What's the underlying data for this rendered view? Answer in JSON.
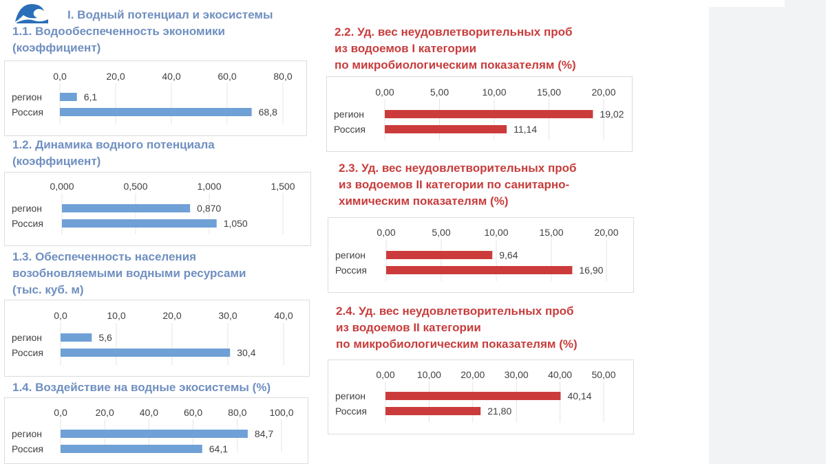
{
  "section_title": "I. Водный потенциал и экосистемы",
  "colors": {
    "blue_bar": "#6fa0d6",
    "red_bar": "#cc3b3b",
    "blue_title": "#6f8fc0",
    "red_title": "#c83c3c"
  },
  "charts": {
    "c11": {
      "title": "1.1. Водообеспеченность экономики\n(коэффициент)",
      "color": "blue"
    },
    "c12": {
      "title": "1.2. Динамика водного потенциала\n(коэффициент)",
      "color": "blue"
    },
    "c13": {
      "title": "1.3. Обеспеченность населения\nвозобновляемыми водными ресурсами\n(тыс. куб. м)",
      "color": "blue"
    },
    "c14": {
      "title": "1.4. Воздействие на водные экосистемы (%)",
      "color": "blue"
    },
    "c22": {
      "title": "2.2. Уд. вес неудовлетворительных проб\nиз водоемов I категории\nпо микробиологическим показателям (%)",
      "color": "red"
    },
    "c23": {
      "title": "2.3. Уд. вес неудовлетворительных проб\nиз водоемов II категории по санитарно-\nхимическим показателям (%)",
      "color": "red"
    },
    "c24": {
      "title": "2.4. Уд. вес неудовлетворительных проб\nиз водоемов II категории\nпо микробиологическим показателям (%)",
      "color": "red"
    }
  },
  "chart_data": [
    {
      "id": "c11",
      "type": "bar",
      "orientation": "horizontal",
      "categories": [
        "регион",
        "Россия"
      ],
      "values": [
        6.1,
        68.8
      ],
      "value_labels": [
        "6,1",
        "68,8"
      ],
      "xlim": [
        0,
        80
      ],
      "ticks": [
        "0,0",
        "20,0",
        "40,0",
        "60,0",
        "80,0"
      ]
    },
    {
      "id": "c12",
      "type": "bar",
      "orientation": "horizontal",
      "categories": [
        "регион",
        "Россия"
      ],
      "values": [
        0.87,
        1.05
      ],
      "value_labels": [
        "0,870",
        "1,050"
      ],
      "xlim": [
        0,
        1.5
      ],
      "ticks": [
        "0,000",
        "0,500",
        "1,000",
        "1,500"
      ]
    },
    {
      "id": "c13",
      "type": "bar",
      "orientation": "horizontal",
      "categories": [
        "регион",
        "Россия"
      ],
      "values": [
        5.6,
        30.4
      ],
      "value_labels": [
        "5,6",
        "30,4"
      ],
      "xlim": [
        0,
        40
      ],
      "ticks": [
        "0,0",
        "10,0",
        "20,0",
        "30,0",
        "40,0"
      ]
    },
    {
      "id": "c14",
      "type": "bar",
      "orientation": "horizontal",
      "categories": [
        "регион",
        "Россия"
      ],
      "values": [
        84.7,
        64.1
      ],
      "value_labels": [
        "84,7",
        "64,1"
      ],
      "xlim": [
        0,
        100
      ],
      "ticks": [
        "0,0",
        "20,0",
        "40,0",
        "60,0",
        "80,0",
        "100,0"
      ]
    },
    {
      "id": "c22",
      "type": "bar",
      "orientation": "horizontal",
      "categories": [
        "регион",
        "Россия"
      ],
      "values": [
        19.02,
        11.14
      ],
      "value_labels": [
        "19,02",
        "11,14"
      ],
      "xlim": [
        0,
        20
      ],
      "ticks": [
        "0,00",
        "5,00",
        "10,00",
        "15,00",
        "20,00"
      ]
    },
    {
      "id": "c23",
      "type": "bar",
      "orientation": "horizontal",
      "categories": [
        "регион",
        "Россия"
      ],
      "values": [
        9.64,
        16.9
      ],
      "value_labels": [
        "9,64",
        "16,90"
      ],
      "xlim": [
        0,
        20
      ],
      "ticks": [
        "0,00",
        "5,00",
        "10,00",
        "15,00",
        "20,00"
      ]
    },
    {
      "id": "c24",
      "type": "bar",
      "orientation": "horizontal",
      "categories": [
        "регион",
        "Россия"
      ],
      "values": [
        40.14,
        21.8
      ],
      "value_labels": [
        "40,14",
        "21,80"
      ],
      "xlim": [
        0,
        50
      ],
      "ticks": [
        "0,00",
        "10,00",
        "20,00",
        "30,00",
        "40,00",
        "50,00"
      ]
    }
  ]
}
